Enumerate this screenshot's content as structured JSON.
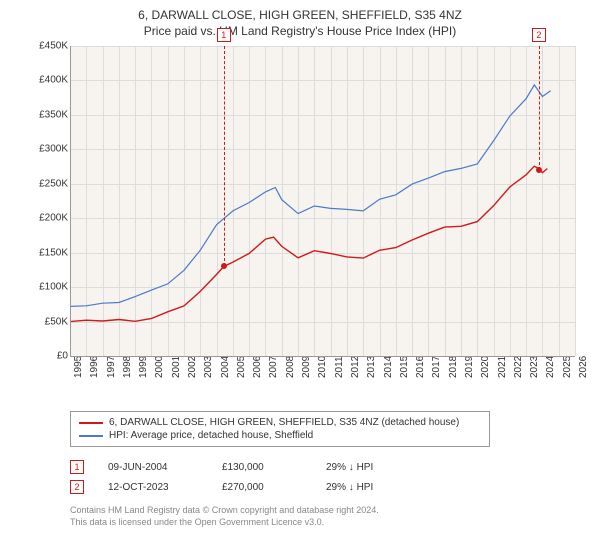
{
  "title_line1": "6, DARWALL CLOSE, HIGH GREEN, SHEFFIELD, S35 4NZ",
  "title_line2": "Price paid vs. HM Land Registry's House Price Index (HPI)",
  "chart": {
    "type": "line",
    "background_color": "#f7f4f0",
    "grid_color": "#dddddd",
    "xlim": [
      1995,
      2026
    ],
    "ylim": [
      0,
      450000
    ],
    "y_ticks": [
      0,
      50000,
      100000,
      150000,
      200000,
      250000,
      300000,
      350000,
      400000,
      450000
    ],
    "y_tick_labels": [
      "£0",
      "£50K",
      "£100K",
      "£150K",
      "£200K",
      "£250K",
      "£300K",
      "£350K",
      "£400K",
      "£450K"
    ],
    "x_ticks": [
      1995,
      1996,
      1997,
      1998,
      1999,
      2000,
      2001,
      2002,
      2003,
      2004,
      2005,
      2006,
      2007,
      2008,
      2009,
      2010,
      2011,
      2012,
      2013,
      2014,
      2015,
      2016,
      2017,
      2018,
      2019,
      2020,
      2021,
      2022,
      2023,
      2024,
      2025,
      2026
    ],
    "series": [
      {
        "name": "property",
        "color": "#d11919",
        "width": 1.4,
        "points": [
          [
            1995,
            50000
          ],
          [
            1996,
            50500
          ],
          [
            1997,
            51000
          ],
          [
            1998,
            52000
          ],
          [
            1999,
            53000
          ],
          [
            2000,
            56000
          ],
          [
            2001,
            62000
          ],
          [
            2002,
            75000
          ],
          [
            2003,
            95000
          ],
          [
            2004,
            120000
          ],
          [
            2004.44,
            130000
          ],
          [
            2005,
            138000
          ],
          [
            2006,
            150000
          ],
          [
            2007,
            168000
          ],
          [
            2007.5,
            172000
          ],
          [
            2008,
            158000
          ],
          [
            2009,
            142000
          ],
          [
            2010,
            150000
          ],
          [
            2011,
            146000
          ],
          [
            2012,
            144000
          ],
          [
            2013,
            145000
          ],
          [
            2014,
            152000
          ],
          [
            2015,
            160000
          ],
          [
            2016,
            170000
          ],
          [
            2017,
            178000
          ],
          [
            2018,
            185000
          ],
          [
            2019,
            190000
          ],
          [
            2020,
            198000
          ],
          [
            2021,
            218000
          ],
          [
            2022,
            245000
          ],
          [
            2023,
            262000
          ],
          [
            2023.5,
            275000
          ],
          [
            2023.78,
            270000
          ],
          [
            2024,
            268000
          ],
          [
            2024.3,
            272000
          ]
        ]
      },
      {
        "name": "hpi",
        "color": "#4a7bc8",
        "width": 1.2,
        "points": [
          [
            1995,
            72000
          ],
          [
            1996,
            73000
          ],
          [
            1997,
            76000
          ],
          [
            1998,
            80000
          ],
          [
            1999,
            86000
          ],
          [
            2000,
            95000
          ],
          [
            2001,
            105000
          ],
          [
            2002,
            125000
          ],
          [
            2003,
            155000
          ],
          [
            2004,
            190000
          ],
          [
            2005,
            210000
          ],
          [
            2006,
            225000
          ],
          [
            2007,
            240000
          ],
          [
            2007.6,
            243000
          ],
          [
            2008,
            225000
          ],
          [
            2009,
            205000
          ],
          [
            2010,
            218000
          ],
          [
            2011,
            212000
          ],
          [
            2012,
            210000
          ],
          [
            2013,
            212000
          ],
          [
            2014,
            225000
          ],
          [
            2015,
            235000
          ],
          [
            2016,
            248000
          ],
          [
            2017,
            258000
          ],
          [
            2018,
            268000
          ],
          [
            2019,
            272000
          ],
          [
            2020,
            280000
          ],
          [
            2021,
            310000
          ],
          [
            2022,
            350000
          ],
          [
            2023,
            372000
          ],
          [
            2023.5,
            395000
          ],
          [
            2024,
            378000
          ],
          [
            2024.5,
            385000
          ]
        ]
      }
    ],
    "markers": [
      {
        "x": 2004.44,
        "y": 130000,
        "color": "#d11919",
        "label": "1"
      },
      {
        "x": 2023.78,
        "y": 270000,
        "color": "#d11919",
        "label": "2"
      }
    ]
  },
  "legend": {
    "items": [
      {
        "color": "#d11919",
        "label": "6, DARWALL CLOSE, HIGH GREEN, SHEFFIELD, S35 4NZ (detached house)"
      },
      {
        "color": "#4a7bc8",
        "label": "HPI: Average price, detached house, Sheffield"
      }
    ]
  },
  "transactions": [
    {
      "num": "1",
      "color": "#d11919",
      "date": "09-JUN-2004",
      "price": "£130,000",
      "delta": "29% ↓ HPI"
    },
    {
      "num": "2",
      "color": "#d11919",
      "date": "12-OCT-2023",
      "price": "£270,000",
      "delta": "29% ↓ HPI"
    }
  ],
  "footnote_line1": "Contains HM Land Registry data © Crown copyright and database right 2024.",
  "footnote_line2": "This data is licensed under the Open Government Licence v3.0."
}
